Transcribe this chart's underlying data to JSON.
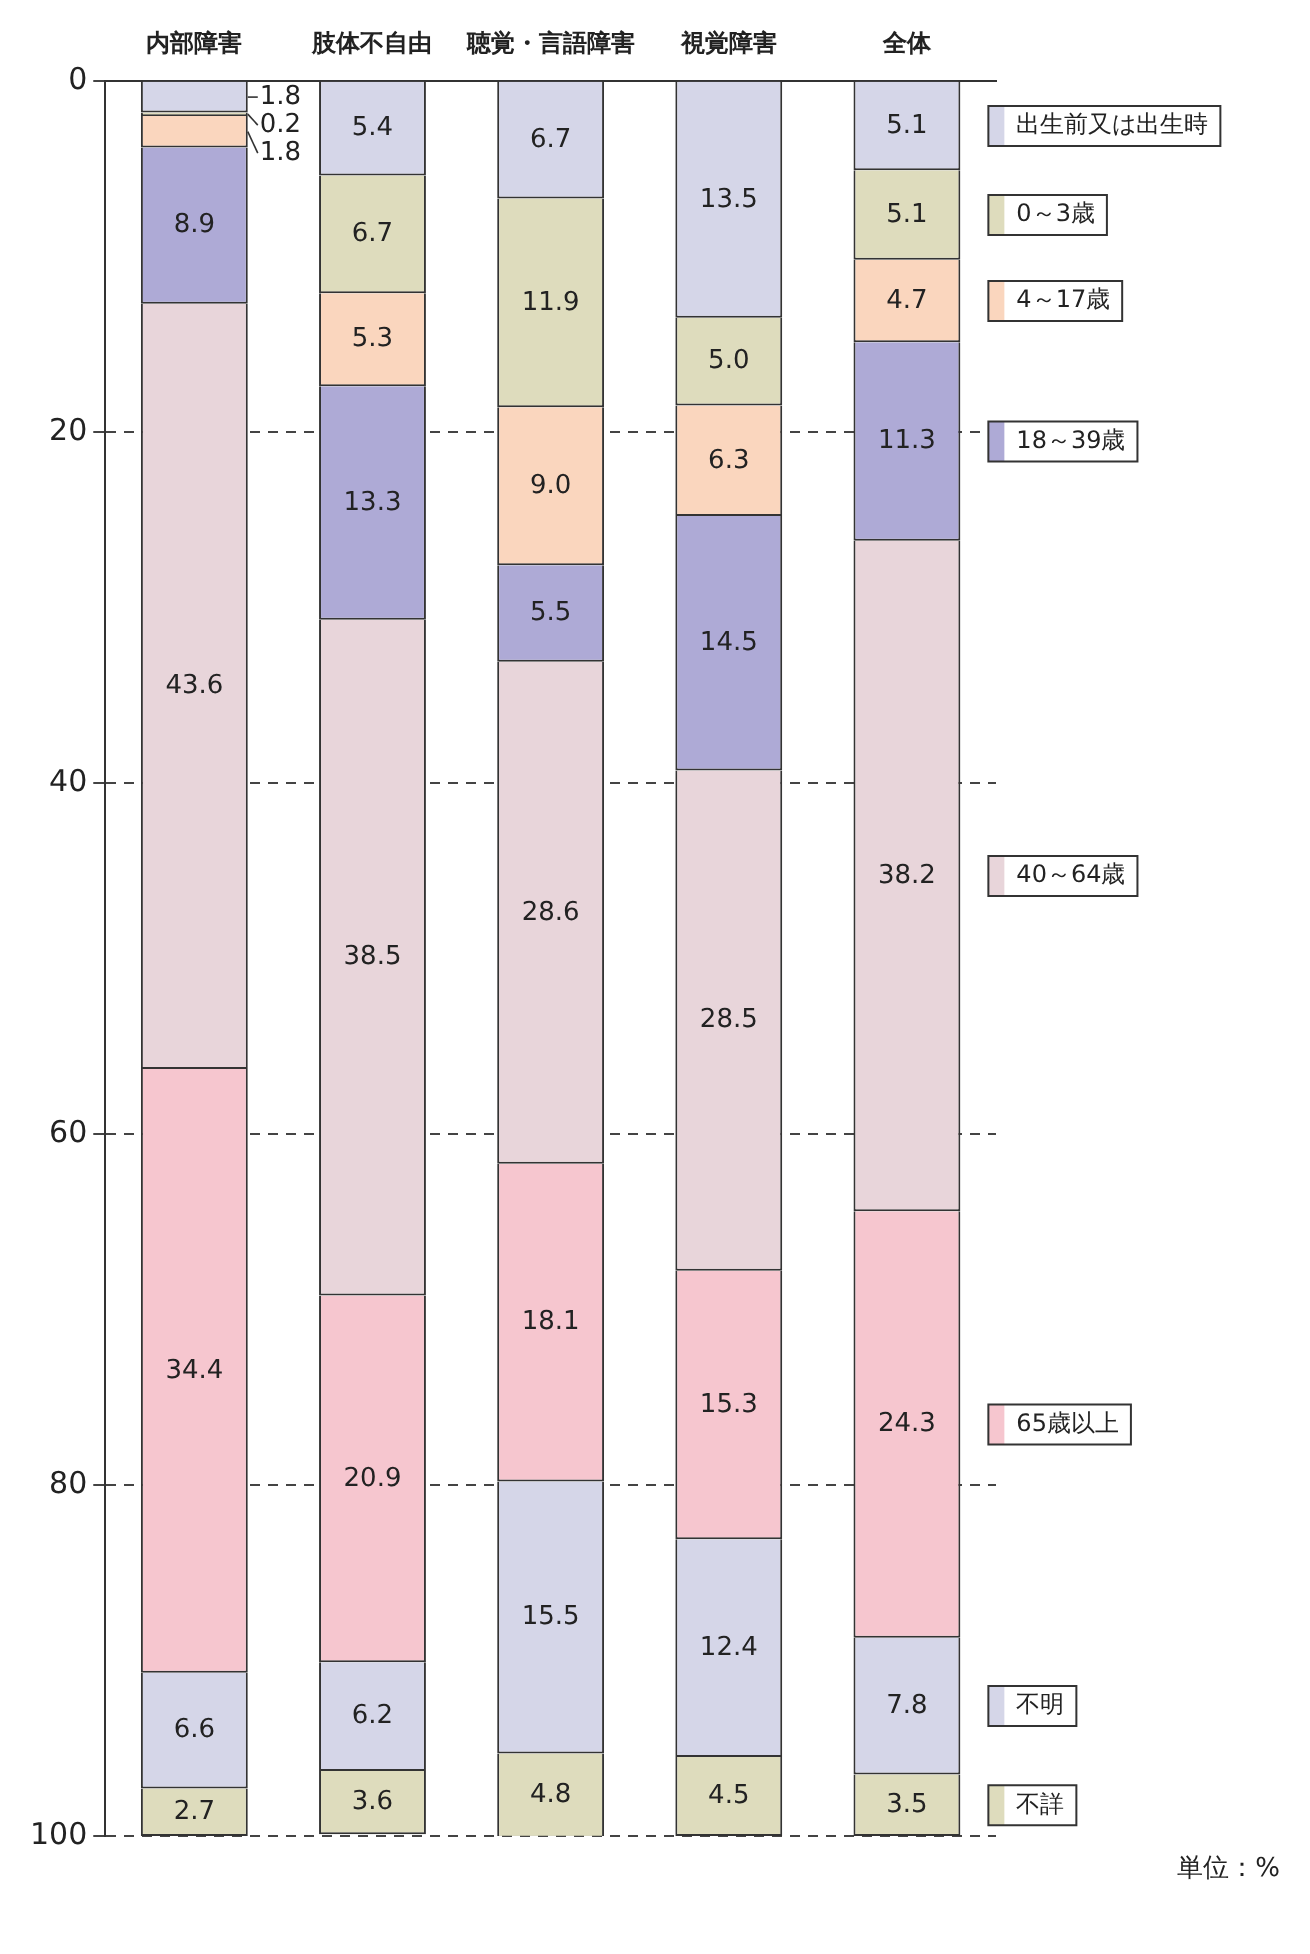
{
  "chart_data": {
    "type": "bar",
    "stacked": true,
    "categories": [
      "内部障害",
      "肢体不自由",
      "聴覚・言語障害",
      "視覚障害",
      "全体"
    ],
    "series": [
      {
        "name": "出生前又は出生時",
        "color": "#d5d6e8",
        "values": [
          1.8,
          5.4,
          6.7,
          13.5,
          5.1
        ]
      },
      {
        "name": "0～3歳",
        "color": "#dedcbd",
        "values": [
          0.2,
          6.7,
          11.9,
          5.0,
          5.1
        ],
        "value_labels": [
          "0.2",
          "6.7",
          "11.9",
          "5.0",
          "5.1"
        ]
      },
      {
        "name": "4～17歳",
        "color": "#fad6be",
        "values": [
          1.8,
          5.3,
          9.0,
          6.3,
          4.7
        ],
        "value_labels": [
          "1.8",
          "5.3",
          "9.0",
          "6.3",
          "4.7"
        ]
      },
      {
        "name": "18～39歳",
        "color": "#aeaad6",
        "values": [
          8.9,
          13.3,
          5.5,
          14.5,
          11.3
        ]
      },
      {
        "name": "40～64歳",
        "color": "#e8d5da",
        "values": [
          43.6,
          38.5,
          28.6,
          28.5,
          38.2
        ]
      },
      {
        "name": "65歳以上",
        "color": "#f6c6cf",
        "values": [
          34.4,
          20.9,
          18.1,
          15.3,
          24.3
        ]
      },
      {
        "name": "不明",
        "color": "#d5d6e8",
        "values": [
          6.6,
          6.2,
          15.5,
          12.4,
          7.8
        ]
      },
      {
        "name": "不詳",
        "color": "#dedcbd",
        "values": [
          2.7,
          3.6,
          4.8,
          4.5,
          3.5
        ]
      }
    ],
    "ylim": [
      100,
      0
    ],
    "yticks": [
      0,
      20,
      40,
      60,
      80,
      100
    ],
    "grid": "y",
    "legend": "right",
    "data_labels": true,
    "annotations": [
      "単位：%"
    ]
  }
}
